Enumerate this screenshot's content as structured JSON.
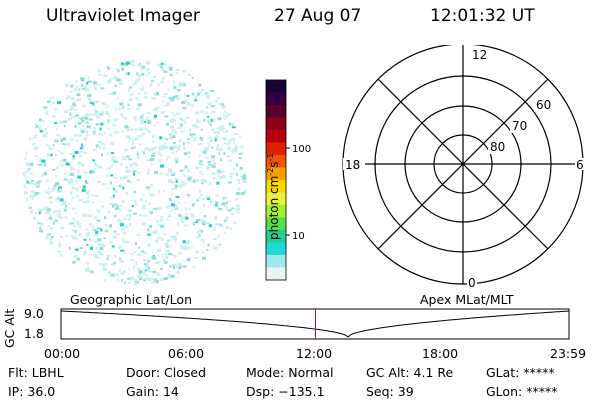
{
  "header": {
    "instrument": "Ultraviolet Imager",
    "date": "27 Aug 07",
    "time": "12:01:32 UT"
  },
  "colorbar": {
    "unit_label": "photon cm",
    "unit_exp1": "-2",
    "unit_s": "s",
    "unit_exp2": "-1",
    "ticks": [
      "100",
      "10"
    ],
    "colors": [
      "#1a0033",
      "#330044",
      "#5a0030",
      "#8a0018",
      "#b80010",
      "#dd2200",
      "#ee5500",
      "#f5a000",
      "#f8d800",
      "#e8f040",
      "#a8ee30",
      "#50e050",
      "#20d090",
      "#20d8d8",
      "#a0e8e8",
      "#e8f4f4"
    ]
  },
  "polar_plot": {
    "hour_labels": {
      "top": "12",
      "left": "18",
      "right": "6",
      "bottom": "0"
    },
    "lat_labels": [
      "60",
      "70",
      "80"
    ]
  },
  "timeline": {
    "y_axis_label": "GC Alt",
    "y_ticks": [
      "9.0",
      "1.8"
    ],
    "left_label": "Geographic Lat/Lon",
    "right_label": "Apex MLat/MLT",
    "x_ticks": [
      "00:00",
      "06:00",
      "12:00",
      "18:00",
      "23:59"
    ],
    "current_time_fraction": 0.501
  },
  "status": [
    [
      {
        "k": "Flt:",
        "v": "LBHL"
      },
      {
        "k": "Door:",
        "v": "Closed"
      },
      {
        "k": "Mode:",
        "v": "Normal"
      },
      {
        "k": "GC Alt:",
        "v": "4.1 Re"
      },
      {
        "k": "GLat:",
        "v": "*****"
      }
    ],
    [
      {
        "k": "IP:",
        "v": "36.0"
      },
      {
        "k": "Gain:",
        "v": "14"
      },
      {
        "k": "Dsp:",
        "v": "−135.1"
      },
      {
        "k": "Seq:",
        "v": "39"
      },
      {
        "k": "GLon:",
        "v": "*****"
      }
    ]
  ],
  "colors": {
    "speckle_light": "#c8eeee",
    "speckle_mid": "#8fdcdc",
    "speckle_bright": "#22cccc",
    "marker": "#cc0033"
  }
}
